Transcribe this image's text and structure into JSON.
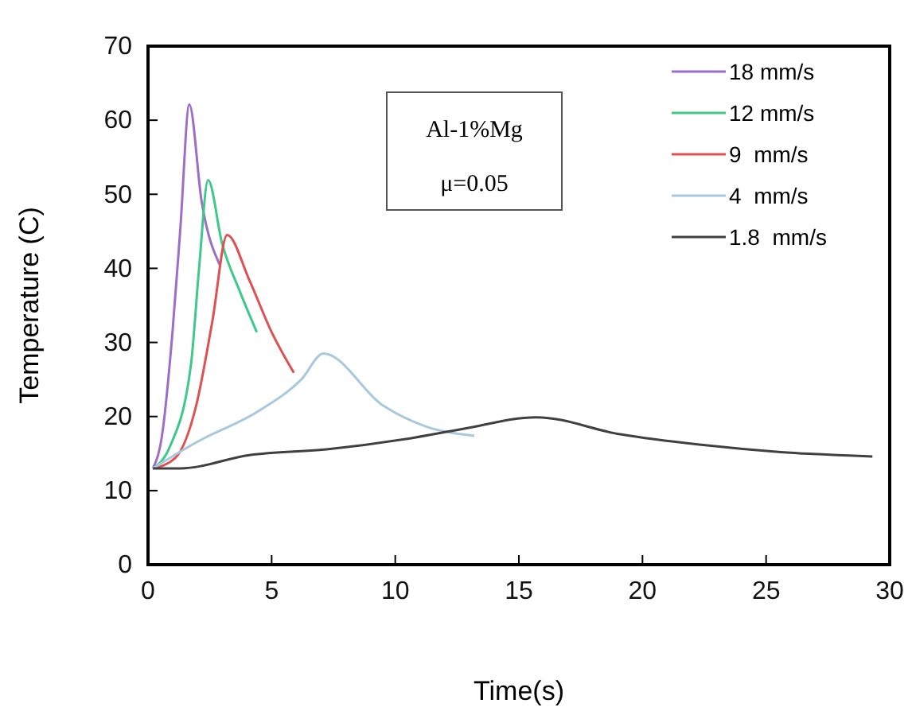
{
  "chart_data": {
    "type": "line",
    "xlabel": "Time(s)",
    "ylabel": "Temperature (C)",
    "xlim": [
      0,
      30
    ],
    "xticks": [
      0,
      5,
      10,
      15,
      20,
      25,
      30
    ],
    "ylim": [
      0,
      70
    ],
    "yticks": [
      0,
      10,
      20,
      30,
      40,
      50,
      60,
      70
    ],
    "grid": false,
    "legend": "top right",
    "marker": "none",
    "line_style": "solid",
    "annotations": [
      "Al-1%Mg",
      "μ=0.05"
    ],
    "series": [
      {
        "name": "18 mm/s",
        "color": "#9b6fc9",
        "x": [
          0.2,
          0.56,
          0.99,
          1.31,
          1.67,
          2.17,
          2.9
        ],
        "values": [
          13,
          17.3,
          31.4,
          45.5,
          62.1,
          49,
          40.5
        ]
      },
      {
        "name": "12 mm/s",
        "color": "#3cc98a",
        "x": [
          0.2,
          0.88,
          1.74,
          2.06,
          2.43,
          3.0,
          3.7,
          4.4
        ],
        "values": [
          13,
          15.9,
          27.1,
          39.8,
          51.9,
          43.3,
          37,
          31.4
        ]
      },
      {
        "name": "9  mm/s",
        "color": "#e05050",
        "x": [
          0.2,
          1.1,
          1.95,
          2.6,
          3.2,
          4.1,
          5.0,
          5.9
        ],
        "values": [
          13,
          14.4,
          21.5,
          32.8,
          44.5,
          38.4,
          31.4,
          25.9
        ]
      },
      {
        "name": "4  mm/s",
        "color": "#a8c8e0",
        "x": [
          0.2,
          1.95,
          4.5,
          6.2,
          7.1,
          9.5,
          11.2,
          13.2
        ],
        "values": [
          13,
          16.5,
          20.8,
          25.0,
          28.5,
          21.5,
          18.7,
          17.4
        ]
      },
      {
        "name": "1.8  mm/s",
        "color": "#404040",
        "x": [
          0.2,
          1.3,
          4.1,
          7.3,
          10.5,
          12.7,
          15.7,
          19.1,
          22.3,
          25.6,
          29.3
        ],
        "values": [
          13,
          13,
          14.8,
          15.6,
          17.0,
          18.3,
          19.9,
          17.6,
          16.2,
          15.2,
          14.6
        ]
      }
    ]
  }
}
